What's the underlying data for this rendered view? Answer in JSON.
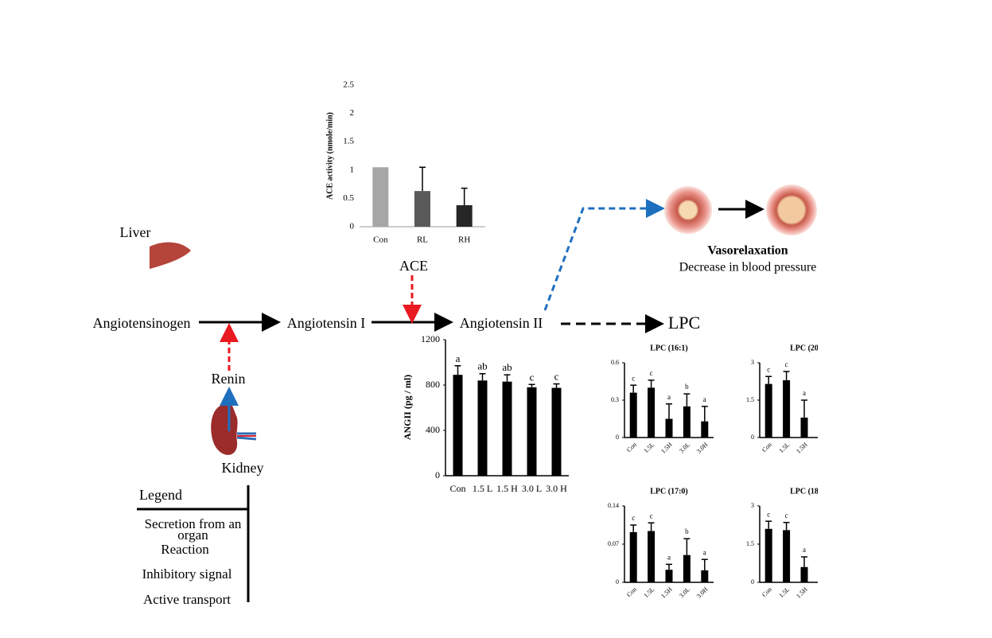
{
  "diagram": {
    "liver": "Liver",
    "angiotensinogen": "Angiotensinogen",
    "angiotensin_i": "Angiotensin I",
    "angiotensin_ii": "Angiotensin II",
    "ace": "ACE",
    "renin": "Renin",
    "kidney": "Kidney",
    "lpc": "LPC",
    "vasorelaxation": "Vasorelaxation",
    "effect": "Decrease in blood pressure"
  },
  "legend": {
    "title": "Legend",
    "items": [
      "Secretion from an organ",
      "Reaction",
      "Inhibitory signal",
      "Active transport"
    ]
  },
  "chart_data": [
    {
      "type": "bar",
      "y_label": "ACE activity (nmole/min)",
      "categories": [
        "Con",
        "RL",
        "RH"
      ],
      "values": [
        1.05,
        0.63,
        0.38
      ],
      "errors": [
        0,
        0.42,
        0.3
      ],
      "colors": [
        "#a6a6a6",
        "#595959",
        "#262626"
      ],
      "ylim": [
        0,
        2.5
      ],
      "yticks": [
        0,
        0.5,
        1,
        1.5,
        2,
        2.5
      ]
    },
    {
      "type": "bar",
      "y_label": "ANGII  (pg / ml)",
      "categories": [
        "Con",
        "1.5 L",
        "1.5 H",
        "3.0 L",
        "3.0 H"
      ],
      "values": [
        890,
        840,
        830,
        780,
        775
      ],
      "errors": [
        80,
        60,
        60,
        25,
        35
      ],
      "annotations": [
        "a",
        "ab",
        "ab",
        "c",
        "c"
      ],
      "color": "#000000",
      "ylim": [
        0,
        1200
      ],
      "yticks": [
        0,
        400,
        800,
        1200
      ]
    },
    {
      "type": "bar",
      "title": "LPC (16:1)",
      "categories": [
        "Con",
        "1.5L",
        "1.5H",
        "3.0L",
        "3.0H"
      ],
      "values": [
        0.36,
        0.4,
        0.15,
        0.25,
        0.13
      ],
      "errors": [
        0.06,
        0.06,
        0.12,
        0.1,
        0.12
      ],
      "annotations": [
        "c",
        "c",
        "a",
        "b",
        "a"
      ],
      "color": "#000000",
      "ylim": [
        0,
        0.6
      ],
      "yticks": [
        0,
        0.3,
        0.6
      ]
    },
    {
      "type": "bar",
      "title": "LPC (20",
      "categories": [
        "Con",
        "1.5L",
        "1.5H"
      ],
      "values": [
        2.15,
        2.3,
        0.8
      ],
      "errors": [
        0.3,
        0.35,
        0.7
      ],
      "annotations": [
        "c",
        "c",
        "a"
      ],
      "color": "#000000",
      "ylim": [
        0,
        3
      ],
      "yticks": [
        0,
        1.5,
        3
      ]
    },
    {
      "type": "bar",
      "title": "LPC (17:0)",
      "categories": [
        "Con",
        "1.5L",
        "1.5H",
        "3.0L",
        "3.0H"
      ],
      "values": [
        0.092,
        0.094,
        0.023,
        0.05,
        0.022
      ],
      "errors": [
        0.013,
        0.015,
        0.01,
        0.03,
        0.02
      ],
      "annotations": [
        "c",
        "c",
        "a",
        "b",
        "a"
      ],
      "color": "#000000",
      "ylim": [
        0,
        0.14
      ],
      "yticks": [
        0,
        0.07,
        0.14
      ]
    },
    {
      "type": "bar",
      "title": "LPC (18",
      "categories": [
        "Con",
        "1.5L",
        "1.5H"
      ],
      "values": [
        2.1,
        2.05,
        0.6
      ],
      "errors": [
        0.3,
        0.3,
        0.4
      ],
      "annotations": [
        "c",
        "c",
        "a"
      ],
      "color": "#000000",
      "ylim": [
        0,
        3
      ],
      "yticks": [
        0,
        1.5,
        3
      ]
    }
  ]
}
